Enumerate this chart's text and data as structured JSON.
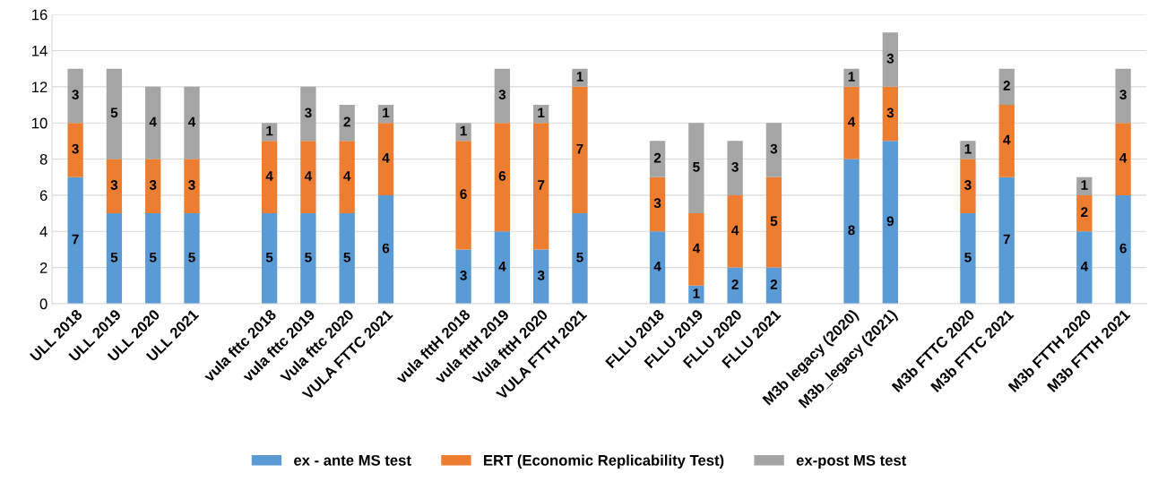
{
  "chart_data": {
    "type": "bar",
    "stacked": true,
    "categories": [
      "ULL 2018",
      "ULL 2019",
      "ULL 2020",
      "ULL 2021",
      null,
      "vula fttc 2018",
      "vula fttc 2019",
      "Vula fttc 2020",
      "VULA FTTC 2021",
      null,
      "vula fttH 2018",
      "vula fttH 2019",
      "Vula fttH 2020",
      "VULA FTTH 2021",
      null,
      "FLLU 2018",
      "FLLU 2019",
      "FLLU 2020",
      "FLLU 2021",
      null,
      "M3b legacy (2020)",
      "M3b_legacy (2021)",
      null,
      "M3b FTTC 2020",
      "M3b FTTC 2021",
      null,
      "M3b FTTH 2020",
      "M3b FTTH 2021"
    ],
    "series": [
      {
        "name": "ex - ante MS test",
        "color": "#5b9bd5",
        "values": [
          7,
          5,
          5,
          5,
          null,
          5,
          5,
          5,
          6,
          null,
          3,
          4,
          3,
          5,
          null,
          4,
          1,
          2,
          2,
          null,
          8,
          9,
          null,
          5,
          7,
          null,
          4,
          6
        ]
      },
      {
        "name": "ERT (Economic Replicability Test)",
        "color": "#ed7d31",
        "values": [
          3,
          3,
          3,
          3,
          null,
          4,
          4,
          4,
          4,
          null,
          6,
          6,
          7,
          7,
          null,
          3,
          4,
          4,
          5,
          null,
          4,
          3,
          null,
          3,
          4,
          null,
          2,
          4
        ]
      },
      {
        "name": "ex-post MS test",
        "color": "#a5a5a5",
        "values": [
          3,
          5,
          4,
          4,
          null,
          1,
          3,
          2,
          1,
          null,
          1,
          3,
          1,
          1,
          null,
          2,
          5,
          3,
          3,
          null,
          1,
          3,
          null,
          1,
          2,
          null,
          1,
          3
        ]
      }
    ],
    "ylim": [
      0,
      16
    ],
    "yticks": [
      0,
      2,
      4,
      6,
      8,
      10,
      12,
      14,
      16
    ],
    "grid": "y",
    "legend": "bottom",
    "data_labels": true
  }
}
